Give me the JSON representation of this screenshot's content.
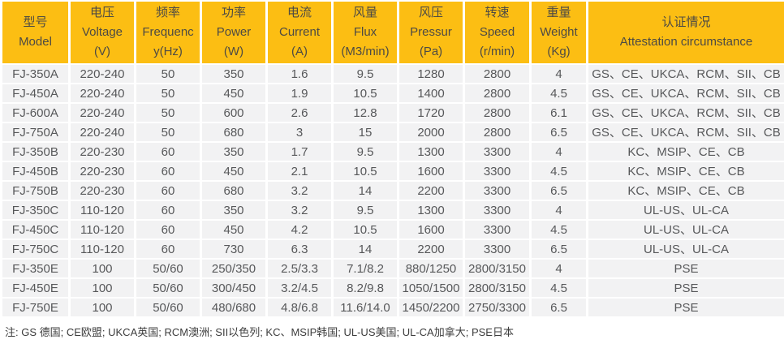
{
  "table": {
    "columns": [
      {
        "id": "model",
        "lines": [
          "型号",
          "Model"
        ]
      },
      {
        "id": "voltage",
        "lines": [
          "电压",
          "Voltage",
          "(V)"
        ]
      },
      {
        "id": "frequency",
        "lines": [
          "频率",
          "Frequenc",
          "y(Hz)"
        ]
      },
      {
        "id": "power",
        "lines": [
          "功率",
          "Power",
          "(W)"
        ]
      },
      {
        "id": "current",
        "lines": [
          "电流",
          "Current",
          "(A)"
        ]
      },
      {
        "id": "flux",
        "lines": [
          "风量",
          "Flux",
          "(M3/min)"
        ]
      },
      {
        "id": "pressure",
        "lines": [
          "风压",
          "Pressur",
          "(Pa)"
        ]
      },
      {
        "id": "speed",
        "lines": [
          "转速",
          "Speed",
          "(r/min)"
        ]
      },
      {
        "id": "weight",
        "lines": [
          "重量",
          "Weight",
          "(Kg)"
        ]
      },
      {
        "id": "attestation",
        "lines": [
          "认证情况",
          "Attestation circumstance"
        ]
      }
    ],
    "rows": [
      [
        "FJ-350A",
        "220-240",
        "50",
        "350",
        "1.6",
        "9.5",
        "1280",
        "2800",
        "4",
        "GS、CE、UKCA、RCM、SII、CB"
      ],
      [
        "FJ-450A",
        "220-240",
        "50",
        "450",
        "1.9",
        "10.5",
        "1400",
        "2800",
        "4.5",
        "GS、CE、UKCA、RCM、SII、CB"
      ],
      [
        "FJ-600A",
        "220-240",
        "50",
        "600",
        "2.6",
        "12.8",
        "1720",
        "2800",
        "6.1",
        "GS、CE、UKCA、RCM、SII、CB"
      ],
      [
        "FJ-750A",
        "220-240",
        "50",
        "680",
        "3",
        "15",
        "2000",
        "2800",
        "6.5",
        "GS、CE、UKCA、RCM、SII、CB"
      ],
      [
        "FJ-350B",
        "220-230",
        "60",
        "350",
        "1.7",
        "9.5",
        "1300",
        "3300",
        "4",
        "KC、MSIP、CE、CB"
      ],
      [
        "FJ-450B",
        "220-230",
        "60",
        "450",
        "2.1",
        "10.5",
        "1600",
        "3300",
        "4.5",
        "KC、MSIP、CE、CB"
      ],
      [
        "FJ-750B",
        "220-230",
        "60",
        "680",
        "3.2",
        "14",
        "2200",
        "3300",
        "6.5",
        "KC、MSIP、CE、CB"
      ],
      [
        "FJ-350C",
        "110-120",
        "60",
        "350",
        "3.2",
        "9.5",
        "1300",
        "3300",
        "4",
        "UL-US、UL-CA"
      ],
      [
        "FJ-450C",
        "110-120",
        "60",
        "450",
        "4.2",
        "10.5",
        "1600",
        "3300",
        "4.5",
        "UL-US、UL-CA"
      ],
      [
        "FJ-750C",
        "110-120",
        "60",
        "730",
        "6.3",
        "14",
        "2200",
        "3300",
        "6.5",
        "UL-US、UL-CA"
      ],
      [
        "FJ-350E",
        "100",
        "50/60",
        "250/350",
        "2.5/3.3",
        "7.1/8.2",
        "880/1250",
        "2800/3150",
        "4",
        "PSE"
      ],
      [
        "FJ-450E",
        "100",
        "50/60",
        "300/450",
        "3.2/4.5",
        "8.2/9.8",
        "1050/1500",
        "2800/3150",
        "4.5",
        "PSE"
      ],
      [
        "FJ-750E",
        "100",
        "50/60",
        "480/680",
        "4.8/6.8",
        "11.6/14.0",
        "1450/2200",
        "2750/3300",
        "6.5",
        "PSE"
      ]
    ]
  },
  "note": "注: GS 德国; CE欧盟; UKCA英国; RCM澳洲; SII以色列; KC、MSIP韩国; UL-US美国; UL-CA加拿大; PSE日本",
  "colors": {
    "header_bg": "#FCBE13",
    "header_text": "#4D4A44",
    "row_bg": "#F2F2F3",
    "cell_text": "#57585A",
    "note_text": "#3C3C3C"
  }
}
